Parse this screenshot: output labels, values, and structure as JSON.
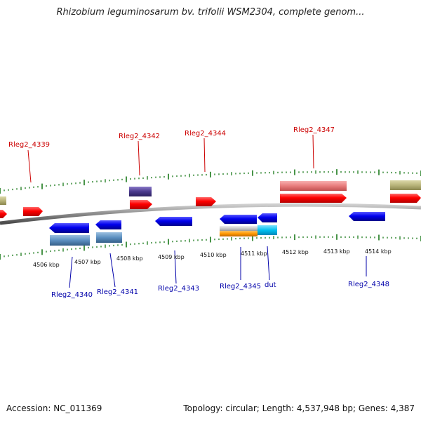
{
  "title": "Rhizobium leguminosarum bv. trifolii WSM2304, complete genom...",
  "footer": {
    "accession": "Accession: NC_011369",
    "topology": "Topology: circular; Length: 4,537,948 bp; Genes: 4,387"
  },
  "scale_labels": [
    "4506 kbp",
    "4507 kbp",
    "4508 kbp",
    "4509 kbp",
    "4510 kbp",
    "4511 kbp",
    "4512 kbp",
    "4513 kbp",
    "4514 kbp"
  ],
  "gene_labels": {
    "forward": [
      {
        "id": "g4339",
        "text": "Rleg2_4339"
      },
      {
        "id": "g4342",
        "text": "Rleg2_4342"
      },
      {
        "id": "g4344",
        "text": "Rleg2_4344"
      },
      {
        "id": "g4347",
        "text": "Rleg2_4347"
      }
    ],
    "reverse": [
      {
        "id": "g4340",
        "text": "Rleg2_4340"
      },
      {
        "id": "g4341",
        "text": "Rleg2_4341"
      },
      {
        "id": "g4343",
        "text": "Rleg2_4343"
      },
      {
        "id": "g4345",
        "text": "Rleg2_4345"
      },
      {
        "id": "gdut",
        "text": "dut"
      },
      {
        "id": "g4348",
        "text": "Rleg2_4348"
      }
    ]
  },
  "colors": {
    "forward_label": "#cc0000",
    "reverse_label": "#0000aa",
    "tick": "#1a7a1a",
    "backbone": "#888888"
  }
}
